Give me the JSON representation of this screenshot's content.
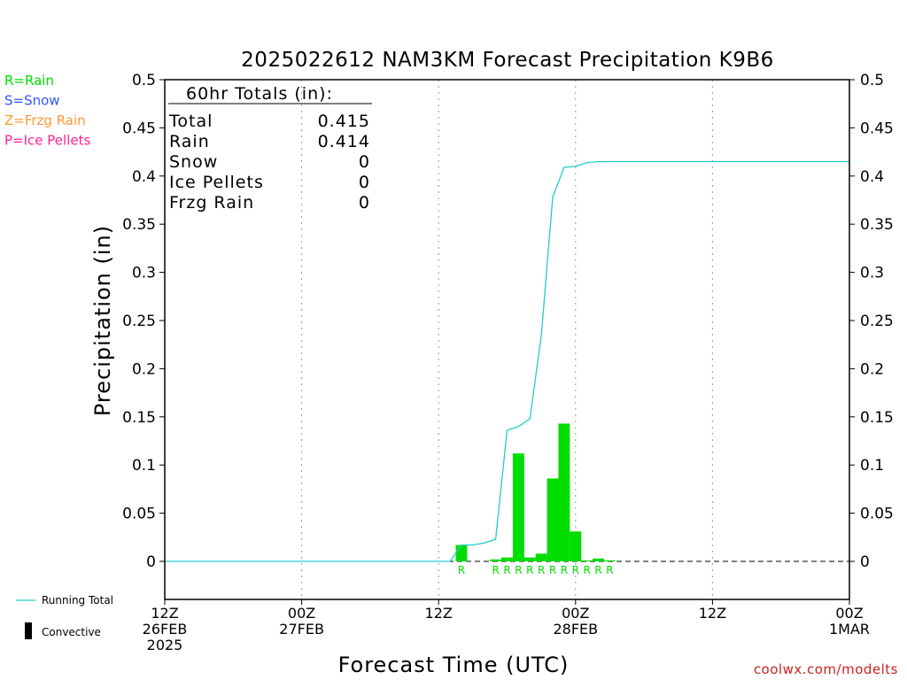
{
  "title": "2025022612 NAM3KM Forecast Precipitation K9B6",
  "legend_types": [
    {
      "label": "R=Rain",
      "color": "#00dd00"
    },
    {
      "label": "S=Snow",
      "color": "#3355ff"
    },
    {
      "label": "Z=Frzg Rain",
      "color": "#ff9933"
    },
    {
      "label": "P=Ice Pellets",
      "color": "#ff2299"
    }
  ],
  "totals": {
    "heading": "60hr Totals (in):",
    "rows": [
      {
        "label": "Total",
        "value": "0.415"
      },
      {
        "label": "Rain",
        "value": "0.414"
      },
      {
        "label": "Snow",
        "value": "0"
      },
      {
        "label": "Ice Pellets",
        "value": "0"
      },
      {
        "label": "Frzg Rain",
        "value": "0"
      }
    ]
  },
  "legend_lines": {
    "running_total": "Running Total",
    "running_total_color": "#22cccc",
    "convective": "Convective"
  },
  "credit": "coolwx.com/modelts",
  "chart_data": {
    "type": "bar",
    "xlabel": "Forecast Time (UTC)",
    "ylabel": "Precipitation (in)",
    "ylim": [
      -0.04,
      0.5
    ],
    "yticks": [
      "0",
      "0.05",
      "0.1",
      "0.15",
      "0.2",
      "0.25",
      "0.3",
      "0.35",
      "0.4",
      "0.45",
      "0.5"
    ],
    "xlim_hours": [
      0,
      60
    ],
    "xticks": [
      {
        "hour": 0,
        "lines": [
          "12Z",
          "26FEB",
          "2025"
        ]
      },
      {
        "hour": 12,
        "lines": [
          "00Z",
          "27FEB"
        ]
      },
      {
        "hour": 24,
        "lines": [
          "12Z"
        ]
      },
      {
        "hour": 36,
        "lines": [
          "00Z",
          "28FEB"
        ]
      },
      {
        "hour": 48,
        "lines": [
          "12Z"
        ]
      },
      {
        "hour": 60,
        "lines": [
          "00Z",
          "1MAR"
        ]
      }
    ],
    "bar_color": "#00dd00",
    "bars": [
      {
        "hour": 26,
        "value": 0.017,
        "type": "R"
      },
      {
        "hour": 29,
        "value": 0.002,
        "type": "R"
      },
      {
        "hour": 30,
        "value": 0.004,
        "type": "R"
      },
      {
        "hour": 31,
        "value": 0.112,
        "type": "R"
      },
      {
        "hour": 32,
        "value": 0.004,
        "type": "R"
      },
      {
        "hour": 33,
        "value": 0.008,
        "type": "R"
      },
      {
        "hour": 34,
        "value": 0.086,
        "type": "R"
      },
      {
        "hour": 35,
        "value": 0.143,
        "type": "R"
      },
      {
        "hour": 36,
        "value": 0.031,
        "type": "R"
      },
      {
        "hour": 37,
        "value": 0.001,
        "type": "R"
      },
      {
        "hour": 38,
        "value": 0.003,
        "type": "R"
      },
      {
        "hour": 39,
        "value": 0.001,
        "type": "R"
      }
    ],
    "running_total": [
      [
        0,
        0
      ],
      [
        25,
        0
      ],
      [
        26,
        0.017
      ],
      [
        27,
        0.017
      ],
      [
        28,
        0.019
      ],
      [
        29,
        0.023
      ],
      [
        30,
        0.136
      ],
      [
        31,
        0.14
      ],
      [
        32,
        0.148
      ],
      [
        33,
        0.235
      ],
      [
        34,
        0.378
      ],
      [
        35,
        0.409
      ],
      [
        36,
        0.41
      ],
      [
        37,
        0.414
      ],
      [
        38,
        0.415
      ],
      [
        60,
        0.415
      ]
    ]
  }
}
